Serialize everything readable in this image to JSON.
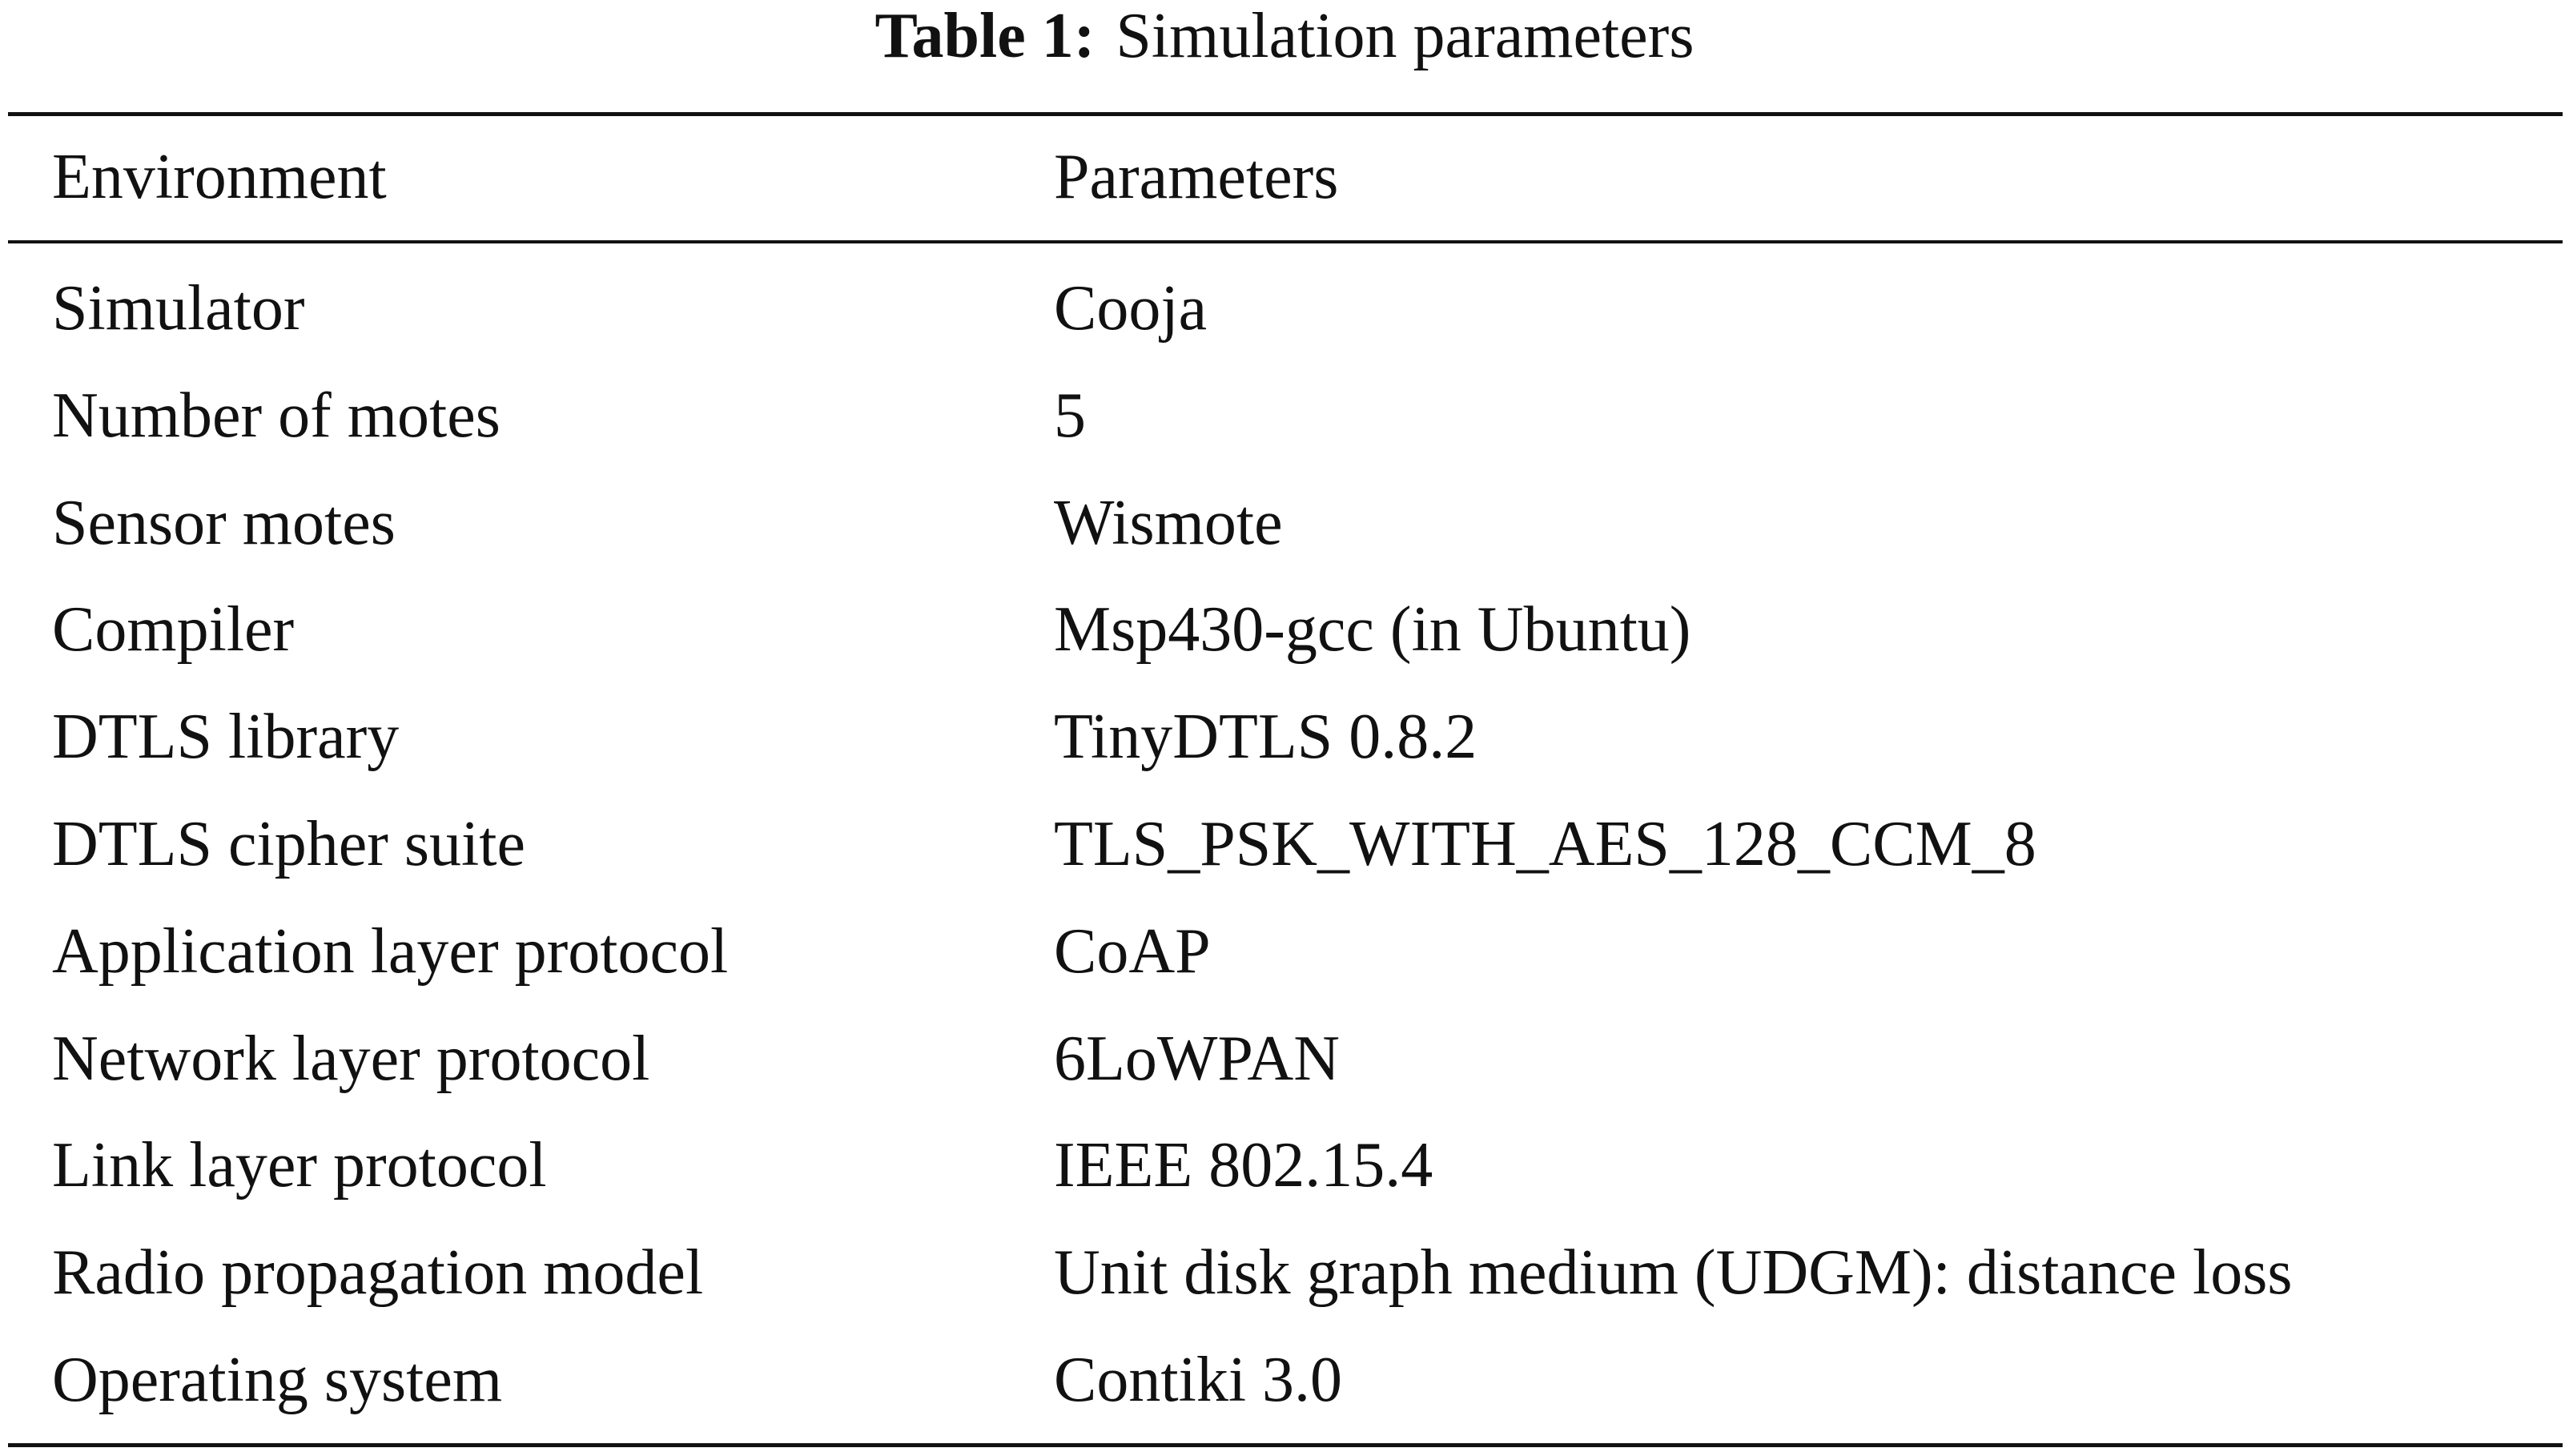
{
  "title": {
    "label": "Table 1:",
    "text": "Simulation parameters"
  },
  "table": {
    "header": [
      "Environment",
      "Parameters"
    ],
    "rows": [
      [
        "Simulator",
        "Cooja"
      ],
      [
        "Number of motes",
        "5"
      ],
      [
        "Sensor motes",
        "Wismote"
      ],
      [
        "Compiler",
        "Msp430-gcc (in Ubuntu)"
      ],
      [
        "DTLS library",
        "TinyDTLS 0.8.2"
      ],
      [
        "DTLS cipher suite",
        "TLS_PSK_WITH_AES_128_CCM_8"
      ],
      [
        "Application layer protocol",
        "CoAP"
      ],
      [
        "Network layer protocol",
        "6LoWPAN"
      ],
      [
        "Link layer protocol",
        "IEEE 802.15.4"
      ],
      [
        "Radio propagation model",
        "Unit disk graph medium (UDGM): distance loss"
      ],
      [
        "Operating system",
        "Contiki 3.0"
      ]
    ]
  }
}
